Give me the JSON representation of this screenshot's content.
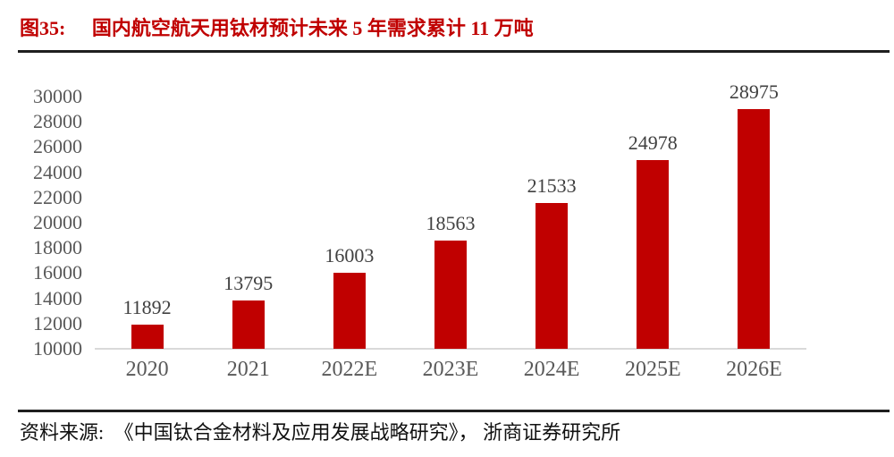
{
  "figure": {
    "label": "图35:",
    "title": "国内航空航天用钛材预计未来 5 年需求累计 11 万吨"
  },
  "chart_data": {
    "type": "bar",
    "title": "国内航空航天用钛材预计未来 5 年需求累计 11 万吨",
    "categories": [
      "2020",
      "2021",
      "2022E",
      "2023E",
      "2024E",
      "2025E",
      "2026E"
    ],
    "values": [
      11892,
      13795,
      16003,
      18563,
      21533,
      24978,
      28975
    ],
    "data_labels": [
      11892,
      13795,
      16003,
      18563,
      21533,
      24978,
      28975
    ],
    "xlabel": "",
    "ylabel": "",
    "ylim": [
      10000,
      30000
    ],
    "yticks": [
      10000,
      12000,
      14000,
      16000,
      18000,
      20000,
      22000,
      24000,
      26000,
      28000,
      30000
    ],
    "grid": false,
    "legend": "none",
    "bar_color": "#C00000"
  },
  "source": {
    "label": "资料来源:",
    "text": "《中国钛合金材料及应用发展战略研究》， 浙商证券研究所"
  },
  "colors": {
    "accent_red": "#C00000",
    "bar_red": "#C00000",
    "rule_black": "#1f1f1f",
    "axis_line_gray": "#D9D9D9",
    "tick_label_gray": "#595959",
    "data_label_gray": "#404040",
    "source_black": "#111111"
  }
}
